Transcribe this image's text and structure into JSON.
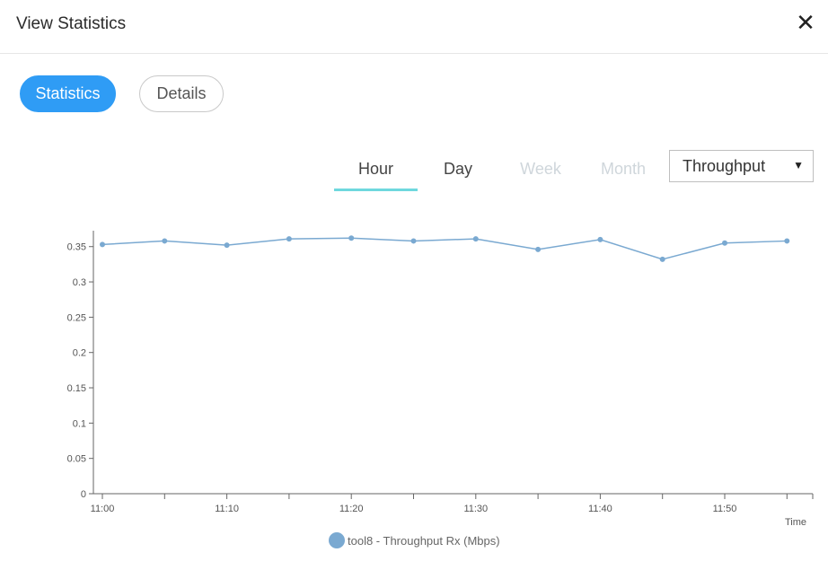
{
  "dialog": {
    "title": "View Statistics",
    "close_icon": "close-icon"
  },
  "view_tabs": {
    "statistics": "Statistics",
    "details": "Details"
  },
  "time_ranges": [
    {
      "label": "Hour",
      "state": "active"
    },
    {
      "label": "Day",
      "state": "normal"
    },
    {
      "label": "Week",
      "state": "disabled"
    },
    {
      "label": "Month",
      "state": "disabled"
    }
  ],
  "metric_select": {
    "value": "Throughput"
  },
  "colors": {
    "accent": "#2f9cf5",
    "underline": "#6fd8de",
    "series": "#7aa9d1"
  },
  "chart_data": {
    "type": "line",
    "xlabel": "Time",
    "ylabel": "",
    "ylim": [
      0,
      0.37
    ],
    "y_ticks": [
      "0",
      "0.05",
      "0.1",
      "0.15",
      "0.2",
      "0.25",
      "0.3",
      "0.35"
    ],
    "x_tick_labels": [
      "11:00",
      "11:10",
      "11:20",
      "11:30",
      "11:40",
      "11:50"
    ],
    "x": [
      "11:00",
      "11:05",
      "11:10",
      "11:15",
      "11:20",
      "11:25",
      "11:30",
      "11:35",
      "11:40",
      "11:45",
      "11:50",
      "11:55"
    ],
    "series": [
      {
        "name": "tool8 - Throughput Rx (Mbps)",
        "values": [
          0.353,
          0.358,
          0.352,
          0.361,
          0.362,
          0.358,
          0.361,
          0.346,
          0.36,
          0.332,
          0.355,
          0.358
        ]
      }
    ],
    "grid": false,
    "legend": "bottom-center"
  }
}
